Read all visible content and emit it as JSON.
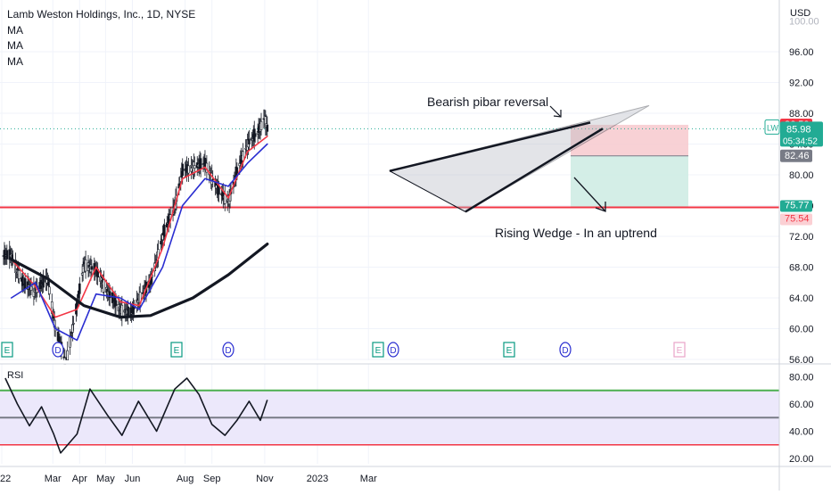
{
  "header": {
    "symbol_line": "Lamb Weston Holdings, Inc., 1D, NYSE",
    "indicators": [
      "MA",
      "MA",
      "MA"
    ],
    "currency": "USD"
  },
  "price_axis": {
    "ticks": [
      "96.00",
      "92.00",
      "88.00",
      "84.00",
      "80.00",
      "76.00",
      "72.00",
      "68.00",
      "64.00",
      "60.00",
      "56.00"
    ],
    "faded_top_tick": "100.00"
  },
  "rsi_axis": {
    "ticks": [
      "80.00",
      "60.00",
      "40.00",
      "20.00"
    ]
  },
  "rsi_label": "RSI",
  "time_axis": {
    "labels": [
      "22",
      "Mar",
      "Apr",
      "May",
      "Jun",
      "Aug",
      "Sep",
      "Nov",
      "2023",
      "Mar"
    ]
  },
  "price_tags": {
    "upper": "86.50",
    "symbol": "LW",
    "last": "85.98",
    "countdown": "05:34:52",
    "position_mid": "82.46",
    "support_upper": "75.77",
    "support_lower": "75.54"
  },
  "annotations": {
    "top": "Bearish pibar reversal",
    "bottom": "Rising Wedge - In an uptrend"
  },
  "event_markers": [
    {
      "type": "E",
      "faded": false
    },
    {
      "type": "D",
      "faded": false
    },
    {
      "type": "E",
      "faded": false
    },
    {
      "type": "D",
      "faded": false
    },
    {
      "type": "E",
      "faded": false
    },
    {
      "type": "D",
      "faded": false
    },
    {
      "type": "E",
      "faded": false
    },
    {
      "type": "D",
      "faded": false
    },
    {
      "type": "E",
      "faded": true
    }
  ],
  "colors": {
    "red": "#f23645",
    "green": "#4caf50",
    "blue": "#2a2ed1",
    "tag_green": "#22ab94",
    "grey": "#787b86",
    "rsi_band": "#ece8fb"
  },
  "chart_data": [
    {
      "type": "line",
      "panel": "price",
      "y_axis": {
        "unit": "USD",
        "range": [
          56,
          100
        ]
      },
      "series": [
        {
          "key": "close",
          "x": [
            "2022-01-12",
            "2022-01-26",
            "2022-02-09",
            "2022-02-23",
            "2022-03-04",
            "2022-03-16",
            "2022-03-29",
            "2022-04-06",
            "2022-04-20",
            "2022-05-05",
            "2022-05-18",
            "2022-05-31",
            "2022-06-09",
            "2022-06-22",
            "2022-07-06",
            "2022-07-20",
            "2022-07-29",
            "2022-08-10",
            "2022-08-24",
            "2022-09-08",
            "2022-09-20",
            "2022-09-30",
            "2022-10-12",
            "2022-10-24",
            "2022-11-01",
            "2022-11-04"
          ],
          "y": [
            69.5,
            65.8,
            65.0,
            66.5,
            60.0,
            55.5,
            63.0,
            68.5,
            67.5,
            64.5,
            62.5,
            62.0,
            64.0,
            66.0,
            72.0,
            76.0,
            80.5,
            81.0,
            81.5,
            78.0,
            76.5,
            80.5,
            84.0,
            85.5,
            87.5,
            85.98
          ]
        },
        {
          "key": "ma_fast",
          "x": [
            "2022-01-12",
            "2022-02-09",
            "2022-03-04",
            "2022-03-29",
            "2022-04-20",
            "2022-05-18",
            "2022-06-09",
            "2022-07-06",
            "2022-07-29",
            "2022-08-24",
            "2022-09-20",
            "2022-10-12",
            "2022-11-04"
          ],
          "y": [
            69.0,
            65.5,
            61.5,
            62.5,
            68.0,
            63.5,
            63.0,
            70.5,
            79.5,
            81.0,
            77.0,
            83.0,
            85.0
          ]
        },
        {
          "key": "ma_mid",
          "x": [
            "2022-01-12",
            "2022-02-09",
            "2022-03-04",
            "2022-03-29",
            "2022-04-20",
            "2022-05-18",
            "2022-06-09",
            "2022-07-06",
            "2022-07-29",
            "2022-08-24",
            "2022-09-20",
            "2022-10-12",
            "2022-11-04"
          ],
          "y": [
            64.0,
            66.0,
            60.0,
            58.5,
            64.5,
            64.0,
            62.5,
            68.0,
            76.0,
            79.5,
            78.5,
            81.5,
            84.0
          ]
        },
        {
          "key": "ma_slow",
          "x": [
            "2022-01-12",
            "2022-02-23",
            "2022-04-06",
            "2022-05-18",
            "2022-06-22",
            "2022-08-10",
            "2022-09-20",
            "2022-11-04"
          ],
          "y": [
            69.0,
            66.5,
            63.0,
            61.5,
            61.7,
            64.0,
            67.0,
            71.0
          ]
        }
      ],
      "levels": [
        {
          "y": 75.77
        },
        {
          "y": 86.5
        },
        {
          "y": 82.46
        }
      ],
      "wedge": {
        "upper": [
          [
            80.5,
            86.8
          ]
        ],
        "lower": [
          [
            75.2,
            86.0
          ]
        ],
        "projected_apex": 89.0
      }
    },
    {
      "type": "line",
      "panel": "RSI",
      "y_axis": {
        "range": [
          20,
          80
        ]
      },
      "levels": [
        70,
        50,
        30
      ],
      "series": [
        {
          "key": "rsi",
          "x": [
            "2022-01-05",
            "2022-01-19",
            "2022-02-02",
            "2022-02-16",
            "2022-03-02",
            "2022-03-10",
            "2022-03-29",
            "2022-04-13",
            "2022-05-03",
            "2022-05-20",
            "2022-06-08",
            "2022-06-29",
            "2022-07-20",
            "2022-08-03",
            "2022-08-17",
            "2022-09-01",
            "2022-09-16",
            "2022-09-30",
            "2022-10-14",
            "2022-10-27",
            "2022-11-04"
          ],
          "y": [
            79,
            60,
            44,
            58,
            38,
            24,
            38,
            71,
            52,
            37,
            62,
            40,
            71,
            79,
            67,
            45,
            37,
            48,
            62,
            48,
            63
          ]
        }
      ]
    }
  ]
}
